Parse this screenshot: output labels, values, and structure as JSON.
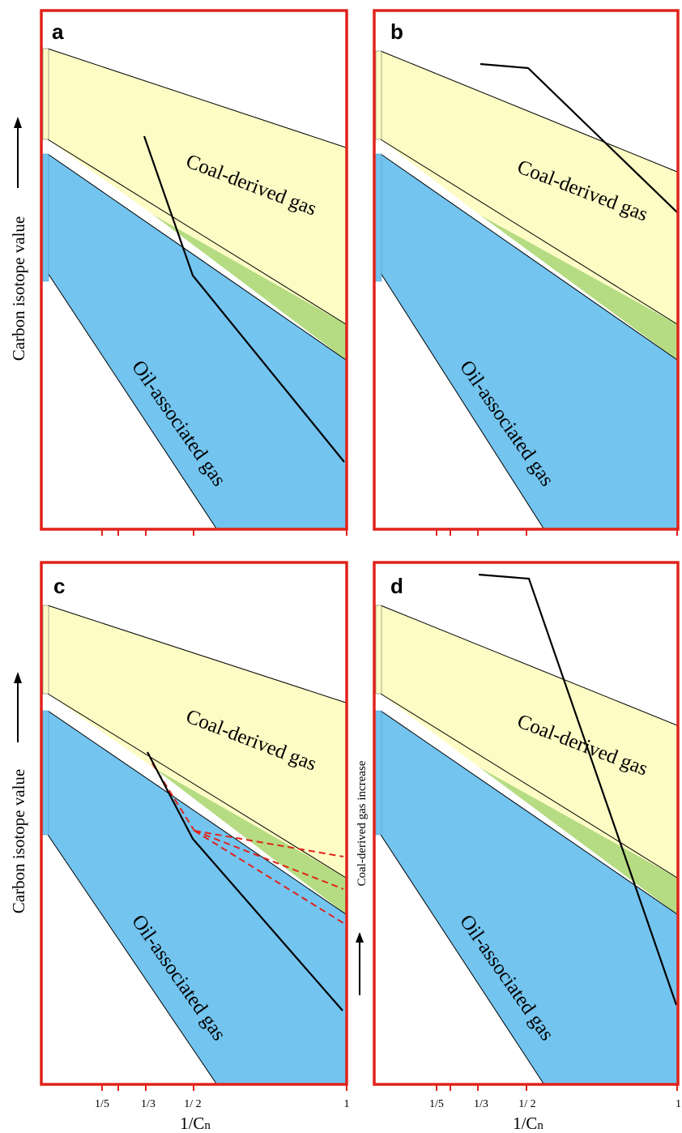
{
  "colors": {
    "frame": "#e0231b",
    "coal_zone": "#fdfcc5",
    "oil_zone": "#73c4ef",
    "mixed_zone": "#b5dc82",
    "trend_line": "#000000",
    "dashed_line": "#e0231b"
  },
  "figure": {
    "y_axis_title": "Carbon isotope value",
    "x_axis_title_base": "1/C",
    "x_axis_title_sub": "n",
    "x_ticks": [
      "1/5",
      "1/3",
      "1/ 2",
      "1"
    ],
    "side_annotation": "Coal-derived gas increase",
    "panels": [
      {
        "letter": "a",
        "coal_label": "Coal-derived gas",
        "oil_label": "Oil-associated gas"
      },
      {
        "letter": "b",
        "coal_label": "Coal-derived gas",
        "oil_label": "Oil-associated gas"
      },
      {
        "letter": "c",
        "coal_label": "Coal-derived gas",
        "oil_label": "Oil-associated gas"
      },
      {
        "letter": "d",
        "coal_label": "Coal-derived gas",
        "oil_label": "Oil-associated gas"
      }
    ]
  }
}
